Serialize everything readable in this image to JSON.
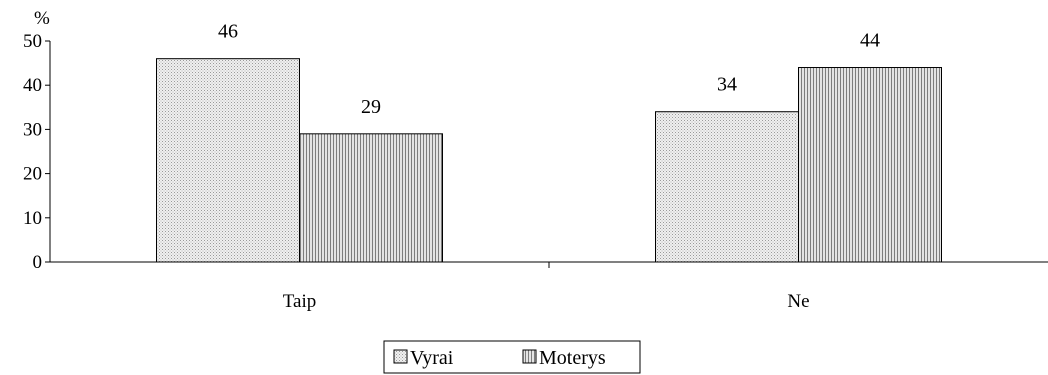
{
  "chart_data": {
    "type": "bar",
    "ylabel": "%",
    "ylim": [
      0,
      50
    ],
    "yticks": [
      0,
      10,
      20,
      30,
      40,
      50
    ],
    "categories": [
      "Taip",
      "Ne"
    ],
    "series": [
      {
        "name": "Vyrai",
        "values": [
          46,
          34
        ],
        "pattern": "dots"
      },
      {
        "name": "Moterys",
        "values": [
          29,
          44
        ],
        "pattern": "vertical-lines"
      }
    ],
    "data_labels": true,
    "grid": false,
    "legend_position": "bottom"
  }
}
